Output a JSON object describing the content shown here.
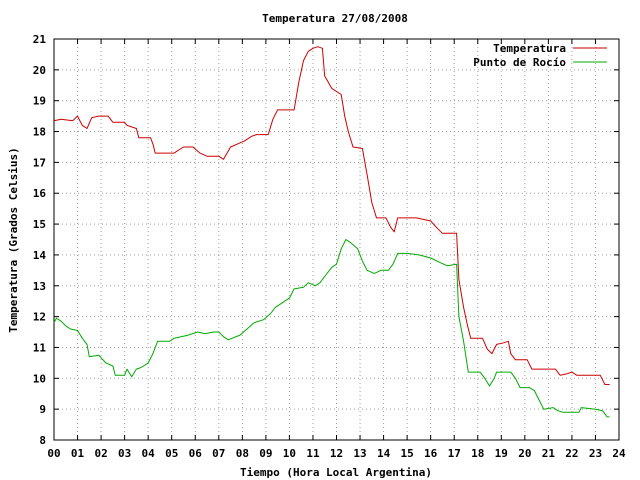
{
  "chart_data": {
    "type": "line",
    "title": "Temperatura 27/08/2008",
    "xlabel": "Tiempo (Hora Local Argentina)",
    "ylabel": "Temperatura (Grados Celsius)",
    "xlim": [
      0,
      24
    ],
    "ylim": [
      8,
      21
    ],
    "grid": true,
    "legend_position": "top-right",
    "x_ticks": [
      "00",
      "01",
      "02",
      "03",
      "04",
      "05",
      "06",
      "07",
      "08",
      "09",
      "10",
      "11",
      "12",
      "13",
      "14",
      "15",
      "16",
      "17",
      "18",
      "19",
      "20",
      "21",
      "22",
      "23",
      "24"
    ],
    "y_ticks": [
      "8",
      "9",
      "10",
      "11",
      "12",
      "13",
      "14",
      "15",
      "16",
      "17",
      "18",
      "19",
      "20",
      "21"
    ],
    "series": [
      {
        "name": "Temperatura",
        "color": "#cc0000",
        "points": [
          [
            0.0,
            18.35
          ],
          [
            0.3,
            18.4
          ],
          [
            0.8,
            18.35
          ],
          [
            1.0,
            18.5
          ],
          [
            1.2,
            18.2
          ],
          [
            1.4,
            18.1
          ],
          [
            1.6,
            18.45
          ],
          [
            1.9,
            18.5
          ],
          [
            2.3,
            18.5
          ],
          [
            2.5,
            18.3
          ],
          [
            3.0,
            18.3
          ],
          [
            3.1,
            18.2
          ],
          [
            3.5,
            18.1
          ],
          [
            3.6,
            17.8
          ],
          [
            4.1,
            17.8
          ],
          [
            4.2,
            17.6
          ],
          [
            4.3,
            17.3
          ],
          [
            5.1,
            17.3
          ],
          [
            5.3,
            17.4
          ],
          [
            5.5,
            17.5
          ],
          [
            5.9,
            17.5
          ],
          [
            6.2,
            17.3
          ],
          [
            6.5,
            17.2
          ],
          [
            7.0,
            17.2
          ],
          [
            7.2,
            17.1
          ],
          [
            7.5,
            17.5
          ],
          [
            7.8,
            17.6
          ],
          [
            8.1,
            17.7
          ],
          [
            8.4,
            17.85
          ],
          [
            8.6,
            17.9
          ],
          [
            9.1,
            17.9
          ],
          [
            9.3,
            18.4
          ],
          [
            9.5,
            18.7
          ],
          [
            10.0,
            18.7
          ],
          [
            10.2,
            18.7
          ],
          [
            10.4,
            19.6
          ],
          [
            10.6,
            20.3
          ],
          [
            10.8,
            20.6
          ],
          [
            11.0,
            20.7
          ],
          [
            11.2,
            20.75
          ],
          [
            11.4,
            20.7
          ],
          [
            11.5,
            19.8
          ],
          [
            11.8,
            19.4
          ],
          [
            12.2,
            19.2
          ],
          [
            12.35,
            18.5
          ],
          [
            12.5,
            18.0
          ],
          [
            12.7,
            17.5
          ],
          [
            13.1,
            17.45
          ],
          [
            13.3,
            16.6
          ],
          [
            13.5,
            15.7
          ],
          [
            13.7,
            15.2
          ],
          [
            14.1,
            15.2
          ],
          [
            14.3,
            14.9
          ],
          [
            14.45,
            14.75
          ],
          [
            14.6,
            15.2
          ],
          [
            15.4,
            15.2
          ],
          [
            16.0,
            15.1
          ],
          [
            16.3,
            14.85
          ],
          [
            16.5,
            14.7
          ],
          [
            17.1,
            14.7
          ],
          [
            17.2,
            13.2
          ],
          [
            17.4,
            12.3
          ],
          [
            17.55,
            11.75
          ],
          [
            17.7,
            11.3
          ],
          [
            18.2,
            11.3
          ],
          [
            18.4,
            10.95
          ],
          [
            18.6,
            10.8
          ],
          [
            18.8,
            11.1
          ],
          [
            19.1,
            11.15
          ],
          [
            19.3,
            11.2
          ],
          [
            19.4,
            10.8
          ],
          [
            19.6,
            10.6
          ],
          [
            20.1,
            10.6
          ],
          [
            20.3,
            10.3
          ],
          [
            21.3,
            10.3
          ],
          [
            21.5,
            10.1
          ],
          [
            21.8,
            10.15
          ],
          [
            22.0,
            10.2
          ],
          [
            22.2,
            10.1
          ],
          [
            23.0,
            10.1
          ],
          [
            23.2,
            10.1
          ],
          [
            23.4,
            9.8
          ],
          [
            23.6,
            9.8
          ]
        ]
      },
      {
        "name": "Punto de Rocío",
        "color": "#00aa00",
        "points": [
          [
            0.0,
            11.8
          ],
          [
            0.1,
            11.95
          ],
          [
            0.3,
            11.85
          ],
          [
            0.5,
            11.7
          ],
          [
            0.7,
            11.6
          ],
          [
            1.0,
            11.55
          ],
          [
            1.2,
            11.3
          ],
          [
            1.4,
            11.1
          ],
          [
            1.5,
            10.7
          ],
          [
            1.9,
            10.75
          ],
          [
            2.2,
            10.5
          ],
          [
            2.5,
            10.4
          ],
          [
            2.6,
            10.1
          ],
          [
            3.0,
            10.1
          ],
          [
            3.1,
            10.3
          ],
          [
            3.3,
            10.05
          ],
          [
            3.5,
            10.3
          ],
          [
            3.7,
            10.35
          ],
          [
            4.0,
            10.5
          ],
          [
            4.2,
            10.8
          ],
          [
            4.4,
            11.2
          ],
          [
            4.9,
            11.2
          ],
          [
            5.1,
            11.3
          ],
          [
            5.4,
            11.35
          ],
          [
            5.7,
            11.4
          ],
          [
            6.1,
            11.5
          ],
          [
            6.4,
            11.45
          ],
          [
            6.8,
            11.5
          ],
          [
            7.0,
            11.5
          ],
          [
            7.2,
            11.35
          ],
          [
            7.4,
            11.25
          ],
          [
            7.9,
            11.4
          ],
          [
            8.2,
            11.6
          ],
          [
            8.5,
            11.8
          ],
          [
            8.9,
            11.9
          ],
          [
            9.2,
            12.1
          ],
          [
            9.4,
            12.3
          ],
          [
            9.6,
            12.4
          ],
          [
            10.0,
            12.6
          ],
          [
            10.2,
            12.9
          ],
          [
            10.6,
            12.95
          ],
          [
            10.8,
            13.1
          ],
          [
            11.1,
            13.0
          ],
          [
            11.3,
            13.1
          ],
          [
            11.5,
            13.3
          ],
          [
            11.8,
            13.6
          ],
          [
            12.0,
            13.7
          ],
          [
            12.2,
            14.2
          ],
          [
            12.4,
            14.5
          ],
          [
            12.6,
            14.4
          ],
          [
            12.9,
            14.2
          ],
          [
            13.1,
            13.8
          ],
          [
            13.3,
            13.5
          ],
          [
            13.6,
            13.4
          ],
          [
            13.9,
            13.5
          ],
          [
            14.2,
            13.5
          ],
          [
            14.4,
            13.7
          ],
          [
            14.6,
            14.05
          ],
          [
            15.0,
            14.05
          ],
          [
            15.5,
            14.0
          ],
          [
            16.0,
            13.9
          ],
          [
            16.4,
            13.75
          ],
          [
            16.7,
            13.65
          ],
          [
            17.1,
            13.7
          ],
          [
            17.2,
            12.0
          ],
          [
            17.4,
            11.2
          ],
          [
            17.6,
            10.2
          ],
          [
            18.1,
            10.2
          ],
          [
            18.3,
            10.0
          ],
          [
            18.5,
            9.75
          ],
          [
            18.7,
            10.0
          ],
          [
            18.8,
            10.2
          ],
          [
            19.4,
            10.2
          ],
          [
            19.6,
            10.0
          ],
          [
            19.8,
            9.7
          ],
          [
            20.2,
            9.7
          ],
          [
            20.4,
            9.6
          ],
          [
            20.6,
            9.3
          ],
          [
            20.8,
            9.0
          ],
          [
            21.2,
            9.05
          ],
          [
            21.4,
            8.95
          ],
          [
            21.6,
            8.9
          ],
          [
            22.3,
            8.9
          ],
          [
            22.4,
            9.05
          ],
          [
            23.0,
            9.0
          ],
          [
            23.3,
            8.95
          ],
          [
            23.5,
            8.75
          ],
          [
            23.6,
            8.75
          ]
        ]
      }
    ]
  }
}
